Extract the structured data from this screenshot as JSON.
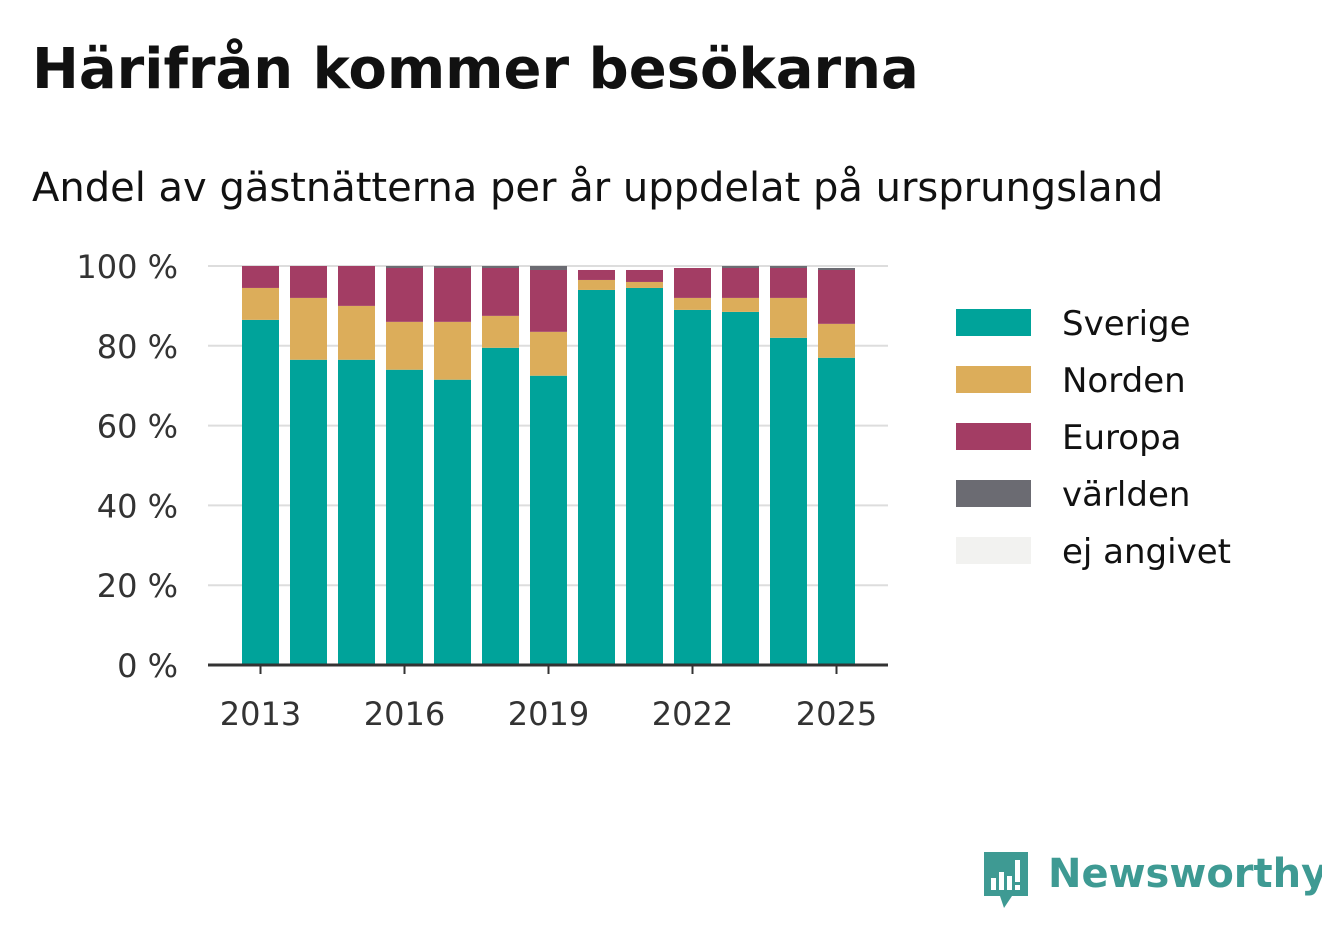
{
  "title": "Härifrån kommer besökarna",
  "subtitle": "Andel av gästnätterna per år uppdelat på ursprungsland",
  "brand": "Newsworthy",
  "chart_data": {
    "type": "bar",
    "stacked": true,
    "categories": [
      "2013",
      "2014",
      "2015",
      "2016",
      "2017",
      "2018",
      "2019",
      "2020",
      "2021",
      "2022",
      "2023",
      "2024",
      "2025"
    ],
    "x_tick_labels": [
      "2013",
      "2016",
      "2019",
      "2022",
      "2025"
    ],
    "y_tick_labels": [
      "0 %",
      "20 %",
      "40 %",
      "60 %",
      "80 %",
      "100 %"
    ],
    "ylim": [
      0,
      100
    ],
    "grid": true,
    "legend_position": "right",
    "series": [
      {
        "name": "Sverige",
        "color": "#00a39a",
        "values": [
          86.5,
          76.5,
          76.5,
          74,
          71.5,
          79.5,
          72.5,
          94,
          94.5,
          89,
          88.5,
          82,
          77
        ]
      },
      {
        "name": "Norden",
        "color": "#dcad5a",
        "values": [
          8,
          15.5,
          13.5,
          12,
          14.5,
          8,
          11,
          2.5,
          1.5,
          3,
          3.5,
          10,
          8.5
        ]
      },
      {
        "name": "Europa",
        "color": "#a33d64",
        "values": [
          5.5,
          8,
          10,
          13.5,
          13.5,
          12,
          15.5,
          2.5,
          3,
          7.5,
          7.5,
          7.5,
          13.5
        ]
      },
      {
        "name": "världen",
        "color": "#6b6b72",
        "values": [
          0,
          0,
          0,
          0.5,
          0.5,
          0.5,
          1,
          0,
          0,
          0,
          0.5,
          0.5,
          0.5
        ]
      },
      {
        "name": "ej angivet",
        "color": "#f2f2f0",
        "values": [
          0,
          0,
          0,
          0,
          0,
          0,
          0,
          0,
          0,
          0,
          0,
          0,
          0
        ]
      }
    ]
  }
}
